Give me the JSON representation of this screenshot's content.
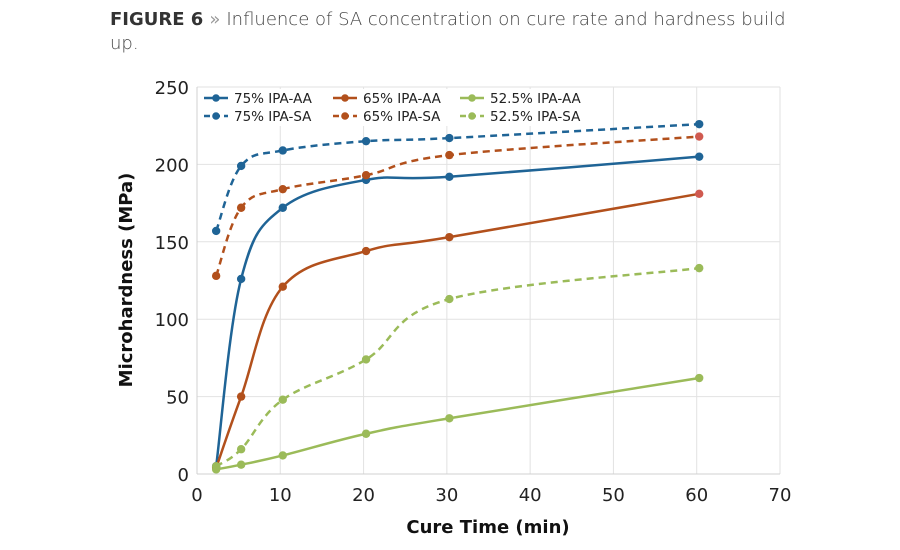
{
  "caption": {
    "figure_label": "FIGURE 6",
    "separator": "»",
    "text": "Influence of SA concentration on cure rate and hardness build up."
  },
  "chart_data": {
    "type": "line",
    "title": "Influence of SA concentration on cure rate and hardness build up.",
    "xlabel": "Cure Time (min)",
    "ylabel": "Microhardness (MPa)",
    "xlim": [
      0,
      70
    ],
    "ylim": [
      0,
      250
    ],
    "xticks": [
      0,
      10,
      20,
      30,
      40,
      50,
      60,
      70
    ],
    "yticks": [
      0,
      50,
      100,
      150,
      200,
      250
    ],
    "grid": true,
    "legend_position": "top",
    "x": [
      2,
      5,
      10,
      20,
      30,
      60
    ],
    "series": [
      {
        "name": "75% IPA-AA",
        "color": "#1f6496",
        "style": "solid",
        "values": [
          5,
          126,
          172,
          190,
          192,
          205
        ]
      },
      {
        "name": "65% IPA-AA",
        "color": "#b2501c",
        "style": "solid",
        "values": [
          4,
          50,
          121,
          144,
          153,
          181
        ]
      },
      {
        "name": "52.5% IPA-AA",
        "color": "#9bbb59",
        "style": "solid",
        "values": [
          3,
          6,
          12,
          26,
          36,
          62
        ]
      },
      {
        "name": "75% IPA-SA",
        "color": "#1f6496",
        "style": "dashed",
        "values": [
          157,
          199,
          209,
          215,
          217,
          226
        ]
      },
      {
        "name": "65% IPA-SA",
        "color": "#b2501c",
        "style": "dashed",
        "values": [
          128,
          172,
          184,
          193,
          206,
          218
        ]
      },
      {
        "name": "52.5% IPA-SA",
        "color": "#9bbb59",
        "style": "dashed",
        "values": [
          5,
          16,
          48,
          74,
          113,
          133
        ]
      }
    ]
  }
}
